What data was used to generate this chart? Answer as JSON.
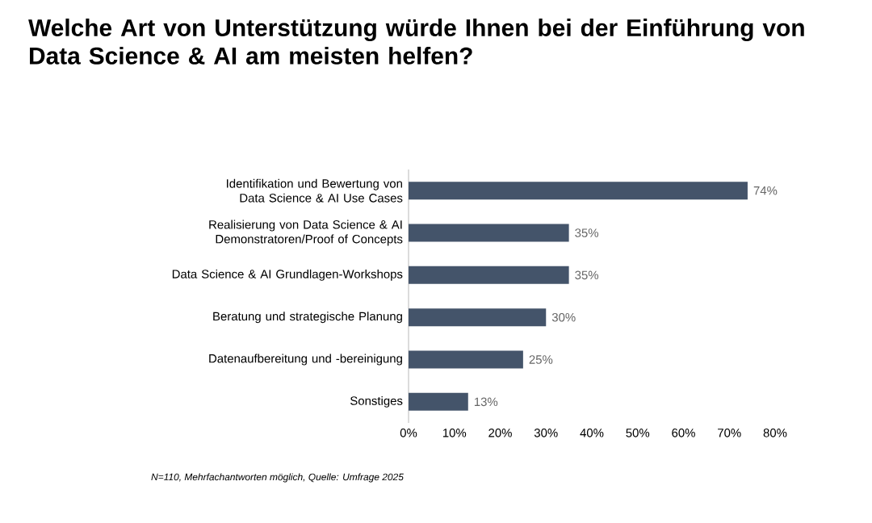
{
  "chart_data": {
    "type": "bar",
    "orientation": "horizontal",
    "title": "Welche Art von Unterstützung würde Ihnen bei der Einführung von Data Science & AI am meisten helfen?",
    "categories": [
      "Identifikation und Bewertung von Data Science & AI Use Cases",
      "Realisierung von Data Science & AI Demonstratoren/Proof of Concepts",
      "Data Science & AI Grundlagen-Workshops",
      "Beratung und strategische Planung",
      "Datenaufbereitung und -bereinigung",
      "Sonstiges"
    ],
    "values": [
      74,
      35,
      35,
      30,
      25,
      13
    ],
    "value_labels": [
      "74%",
      "35%",
      "35%",
      "30%",
      "25%",
      "13%"
    ],
    "color": "#44546a",
    "xlim": [
      0,
      80
    ],
    "xticks": [
      {
        "value": 0,
        "label": "0%"
      },
      {
        "value": 10,
        "label": "10%"
      },
      {
        "value": 20,
        "label": "20%"
      },
      {
        "value": 30,
        "label": "30%"
      },
      {
        "value": 40,
        "label": "40%"
      },
      {
        "value": 50,
        "label": "50%"
      },
      {
        "value": 60,
        "label": "60%"
      },
      {
        "value": 70,
        "label": "70%"
      },
      {
        "value": 80,
        "label": "80%"
      }
    ],
    "annotations": [
      "N=110, Mehrfachantworten möglich, Quelle: Umfrage 2025"
    ]
  }
}
